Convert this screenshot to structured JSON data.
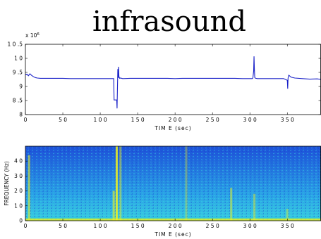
{
  "title": "infrasound",
  "colors": {
    "line": "#1a22c8",
    "axis": "#000000",
    "colormap_low": "#1d4fd8",
    "colormap_mid": "#19c4d8",
    "colormap_high": "#f2f21a"
  },
  "chart_data": [
    {
      "type": "line",
      "title": "infrasound",
      "xlabel": "TIM E  (sec)",
      "ylabel": "",
      "exponent_label": "x 10",
      "exponent_power": "6",
      "xlim": [
        0,
        395
      ],
      "ylim": [
        8,
        10.5
      ],
      "xticks": [
        0,
        50,
        100,
        150,
        200,
        250,
        300,
        350
      ],
      "xtick_labels": [
        "0",
        "5 0",
        "1 0 0",
        "1 5 0",
        "2 0 0",
        "2 5 0",
        "3 0 0",
        "3 5 0"
      ],
      "yticks": [
        8,
        8.5,
        9,
        9.5,
        10,
        10.5
      ],
      "ytick_labels": [
        "8",
        "8 .5",
        "9",
        "9 .5",
        "1 0",
        "1 0 .5"
      ],
      "grid": false,
      "series": [
        {
          "x": [
            0,
            2,
            4,
            6,
            8,
            10,
            12,
            14,
            16,
            20,
            30,
            40,
            50,
            60,
            70,
            80,
            90,
            100,
            110,
            118,
            118.5,
            120,
            122,
            122.5,
            123,
            123.5,
            124,
            124.5,
            125,
            126,
            127,
            130,
            140,
            150,
            160,
            170,
            180,
            190,
            200,
            210,
            220,
            230,
            240,
            250,
            260,
            270,
            280,
            290,
            300,
            303,
            304,
            305,
            305.5,
            306,
            306.5,
            307,
            308,
            310,
            320,
            330,
            340,
            345,
            350,
            350.5,
            351,
            352,
            355,
            360,
            370,
            380,
            390,
            395
          ],
          "y": [
            9.42,
            9.44,
            9.38,
            9.45,
            9.4,
            9.36,
            9.33,
            9.31,
            9.3,
            9.29,
            9.29,
            9.29,
            9.29,
            9.28,
            9.28,
            9.28,
            9.28,
            9.28,
            9.28,
            9.28,
            8.52,
            8.52,
            8.52,
            8.22,
            8.95,
            9.62,
            9.3,
            9.7,
            9.35,
            9.29,
            9.3,
            9.28,
            9.29,
            9.29,
            9.29,
            9.29,
            9.29,
            9.29,
            9.28,
            9.29,
            9.29,
            9.29,
            9.29,
            9.29,
            9.29,
            9.29,
            9.29,
            9.28,
            9.28,
            9.28,
            9.3,
            9.55,
            10.07,
            9.6,
            9.32,
            9.3,
            9.29,
            9.28,
            9.28,
            9.28,
            9.28,
            9.28,
            9.22,
            8.92,
            9.3,
            9.4,
            9.33,
            9.3,
            9.28,
            9.26,
            9.27,
            9.25
          ]
        }
      ]
    },
    {
      "type": "heatmap",
      "xlabel": "TIM E  (sec)",
      "ylabel": "FREQUENCY (Hz)",
      "xlim": [
        0,
        395
      ],
      "ylim": [
        0,
        50
      ],
      "xticks": [
        0,
        50,
        100,
        150,
        200,
        250,
        300,
        350
      ],
      "xtick_labels": [
        "0",
        "5 0",
        "1 0 0",
        "1 5 0",
        "2 0 0",
        "2 5 0",
        "3 0 0",
        "3 5 0"
      ],
      "yticks": [
        0,
        10,
        20,
        30,
        40
      ],
      "ytick_labels": [
        "0",
        "1 0",
        "2 0",
        "3 0",
        "4 0"
      ],
      "grid": false,
      "bright_events_sec": [
        5,
        118,
        122,
        127,
        215,
        275,
        306,
        350
      ]
    }
  ]
}
